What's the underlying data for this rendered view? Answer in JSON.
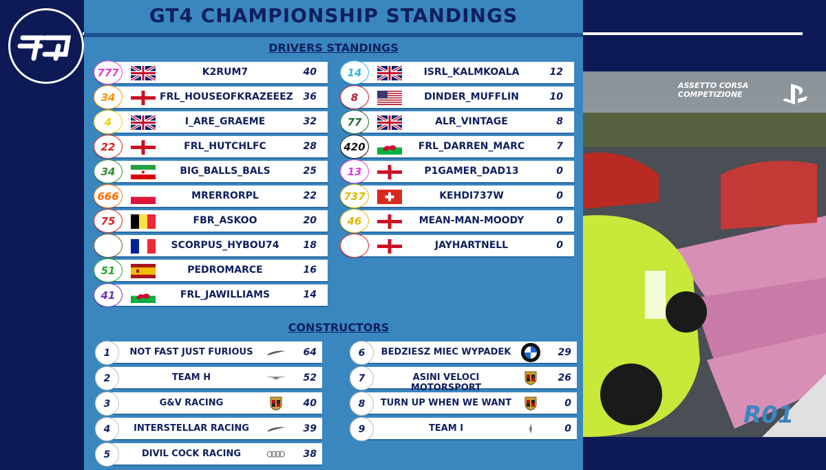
{
  "title": "GT4 CHAMPIONSHIP STANDINGS",
  "drivers_heading": "DRIVERS STANDINGS",
  "constructors_heading": "CONSTRUCTORS",
  "round_label": "R01",
  "brand": {
    "line1": "ASSETTO CORSA",
    "line2": "COMPETIZIONE"
  },
  "drivers_left": [
    {
      "number": "777",
      "flag": "uk",
      "name": "K2RUM7",
      "points": "40",
      "color": "#e23bd6"
    },
    {
      "number": "34",
      "flag": "england",
      "name": "FRL_HOUSEOFKRAZEEEZ",
      "points": "36",
      "color": "#ff8c00"
    },
    {
      "number": "4",
      "flag": "uk",
      "name": "I_ARE_GRAEME",
      "points": "32",
      "color": "#f2d100"
    },
    {
      "number": "22",
      "flag": "england",
      "name": "FRL_HUTCHLFC",
      "points": "28",
      "color": "#d81f1f"
    },
    {
      "number": "34",
      "flag": "iran",
      "name": "BIG_BALLS_BALS",
      "points": "25",
      "color": "#2e8b2e"
    },
    {
      "number": "666",
      "flag": "poland",
      "name": "MRERRORPL",
      "points": "22",
      "color": "#ff6a00"
    },
    {
      "number": "75",
      "flag": "belgium",
      "name": "FBR_ASKOO",
      "points": "20",
      "color": "#d81f1f"
    },
    {
      "number": "",
      "flag": "france",
      "name": "SCORPUS_HYBOU74",
      "points": "18",
      "color": "#6b5a1e"
    },
    {
      "number": "51",
      "flag": "spain",
      "name": "PEDROMARCE",
      "points": "16",
      "color": "#22a822"
    },
    {
      "number": "41",
      "flag": "wales",
      "name": "FRL_JAWILLIAMS",
      "points": "14",
      "color": "#6a2fc0"
    }
  ],
  "drivers_right": [
    {
      "number": "14",
      "flag": "uk",
      "name": "ISRL_KALMKOALA",
      "points": "12",
      "color": "#2fb6e0"
    },
    {
      "number": "8",
      "flag": "usa",
      "name": "DINDER_MUFFLIN",
      "points": "10",
      "color": "#c0142b"
    },
    {
      "number": "77",
      "flag": "uk",
      "name": "ALR_VINTAGE",
      "points": "8",
      "color": "#1d6b2f"
    },
    {
      "number": "420",
      "flag": "wales",
      "name": "FRL_DARREN_MARC",
      "points": "7",
      "color": "#111111"
    },
    {
      "number": "13",
      "flag": "england",
      "name": "P1GAMER_DAD13",
      "points": "0",
      "color": "#e23bd6"
    },
    {
      "number": "737",
      "flag": "switzerland",
      "name": "KEHDI737W",
      "points": "0",
      "color": "#e0b800"
    },
    {
      "number": "46",
      "flag": "england",
      "name": "MEAN-MAN-MOODY",
      "points": "0",
      "color": "#e0b800"
    },
    {
      "number": "",
      "flag": "england",
      "name": "JAYHARTNELL",
      "points": "0",
      "color": "#d81f1f"
    }
  ],
  "constructors_left": [
    {
      "pos": "1",
      "name": "NOT FAST JUST FURIOUS",
      "points": "64",
      "logo": "mclaren-logo"
    },
    {
      "pos": "2",
      "name": "TEAM H",
      "points": "52",
      "logo": "aston-martin-logo"
    },
    {
      "pos": "3",
      "name": "G&V RACING",
      "points": "40",
      "logo": "porsche-logo"
    },
    {
      "pos": "4",
      "name": "INTERSTELLAR RACING",
      "points": "39",
      "logo": "mclaren-logo"
    },
    {
      "pos": "5",
      "name": "DIVIL COCK RACING",
      "points": "38",
      "logo": "audi-logo"
    }
  ],
  "constructors_right": [
    {
      "pos": "6",
      "name": "BEDZIESZ MIEC WYPADEK",
      "points": "29",
      "logo": "bmw-logo"
    },
    {
      "pos": "7",
      "name": "ASINI VELOCI MOTORSPORT",
      "points": "26",
      "logo": "porsche-logo"
    },
    {
      "pos": "8",
      "name": "TURN UP WHEN WE WANT",
      "points": "0",
      "logo": "porsche-logo"
    },
    {
      "pos": "9",
      "name": "TEAM I",
      "points": "0",
      "logo": "maserati-logo"
    }
  ]
}
